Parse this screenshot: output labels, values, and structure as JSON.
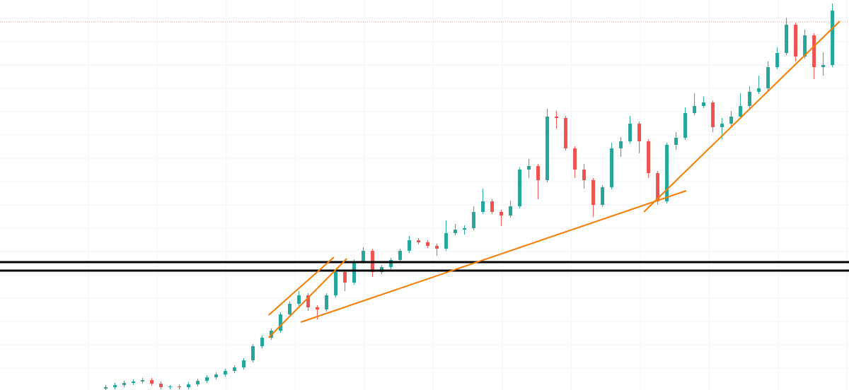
{
  "chart_data": {
    "type": "candlestick",
    "up_color": "#26a69a",
    "down_color": "#ef5350",
    "xlim": [
      -11.5,
      80.8
    ],
    "ylim": [
      0,
      552
    ],
    "grid": true,
    "xticks": [
      -1.9,
      5.6,
      13.1,
      20.6,
      28.1,
      35.6,
      43.1,
      50.6,
      58.1,
      65.6,
      73.1,
      80.6
    ],
    "yticks": [
      31,
      64,
      97,
      130,
      163,
      196,
      229,
      262,
      295,
      328,
      361,
      394,
      427,
      460,
      493,
      526
    ],
    "candles": [
      [
        2,
        7,
        0,
        4
      ],
      [
        4,
        10,
        1,
        7
      ],
      [
        7,
        13,
        4,
        10
      ],
      [
        10,
        15,
        7,
        12
      ],
      [
        12,
        17,
        9,
        14
      ],
      [
        14,
        17,
        6,
        9
      ],
      [
        9,
        12,
        1,
        4
      ],
      [
        4,
        7,
        1,
        5
      ],
      [
        5,
        8,
        1,
        4
      ],
      [
        4,
        11,
        1,
        8
      ],
      [
        8,
        16,
        5,
        13
      ],
      [
        13,
        21,
        10,
        18
      ],
      [
        18,
        25,
        15,
        22
      ],
      [
        22,
        30,
        19,
        27
      ],
      [
        27,
        35,
        24,
        32
      ],
      [
        32,
        45,
        29,
        42
      ],
      [
        42,
        65,
        39,
        62
      ],
      [
        62,
        77,
        59,
        74
      ],
      [
        74,
        87,
        71,
        84
      ],
      [
        84,
        110,
        81,
        107
      ],
      [
        107,
        125,
        104,
        122
      ],
      [
        122,
        140,
        119,
        134
      ],
      [
        134,
        137,
        112,
        117
      ],
      [
        117,
        120,
        100,
        114
      ],
      [
        114,
        137,
        111,
        134
      ],
      [
        134,
        170,
        131,
        167
      ],
      [
        167,
        170,
        140,
        152
      ],
      [
        152,
        185,
        149,
        182
      ],
      [
        182,
        202,
        179,
        197
      ],
      [
        197,
        200,
        160,
        167
      ],
      [
        167,
        177,
        164,
        174
      ],
      [
        174,
        187,
        171,
        184
      ],
      [
        184,
        200,
        181,
        197
      ],
      [
        197,
        218,
        194,
        212
      ],
      [
        212,
        215,
        206,
        209
      ],
      [
        209,
        212,
        201,
        204
      ],
      [
        204,
        207,
        190,
        200
      ],
      [
        200,
        240,
        197,
        222
      ],
      [
        222,
        235,
        219,
        227
      ],
      [
        227,
        233,
        220,
        229
      ],
      [
        229,
        260,
        226,
        252
      ],
      [
        252,
        285,
        249,
        267
      ],
      [
        267,
        270,
        249,
        252
      ],
      [
        252,
        255,
        232,
        247
      ],
      [
        247,
        268,
        244,
        260
      ],
      [
        260,
        315,
        257,
        312
      ],
      [
        312,
        327,
        300,
        317
      ],
      [
        317,
        320,
        270,
        297
      ],
      [
        297,
        398,
        294,
        387
      ],
      [
        387,
        395,
        370,
        385
      ],
      [
        385,
        388,
        339,
        342
      ],
      [
        342,
        345,
        300,
        312
      ],
      [
        312,
        320,
        285,
        297
      ],
      [
        297,
        300,
        245,
        262
      ],
      [
        262,
        290,
        259,
        287
      ],
      [
        287,
        350,
        284,
        342
      ],
      [
        342,
        358,
        330,
        352
      ],
      [
        352,
        388,
        349,
        377
      ],
      [
        377,
        380,
        335,
        352
      ],
      [
        352,
        355,
        300,
        307
      ],
      [
        307,
        310,
        262,
        267
      ],
      [
        267,
        350,
        264,
        347
      ],
      [
        347,
        365,
        340,
        357
      ],
      [
        357,
        400,
        354,
        392
      ],
      [
        392,
        420,
        389,
        402
      ],
      [
        402,
        415,
        399,
        407
      ],
      [
        407,
        410,
        365,
        372
      ],
      [
        372,
        385,
        355,
        377
      ],
      [
        377,
        395,
        374,
        387
      ],
      [
        387,
        420,
        384,
        402
      ],
      [
        402,
        430,
        399,
        422
      ],
      [
        422,
        445,
        419,
        427
      ],
      [
        427,
        465,
        424,
        457
      ],
      [
        457,
        485,
        454,
        477
      ],
      [
        477,
        527,
        474,
        517
      ],
      [
        517,
        520,
        465,
        472
      ],
      [
        472,
        510,
        469,
        502
      ],
      [
        502,
        505,
        440,
        457
      ],
      [
        457,
        478,
        445,
        460
      ],
      [
        460,
        547,
        457,
        537
      ]
    ],
    "trendlines": {
      "color": "#f57c00",
      "lines": [
        [
          [
            17.7,
            106
          ],
          [
            24.8,
            188
          ]
        ],
        [
          [
            17.7,
            74
          ],
          [
            26.2,
            186
          ]
        ],
        [
          [
            21.2,
            96
          ],
          [
            63.1,
            282
          ]
        ],
        [
          [
            58.5,
            252
          ],
          [
            79.8,
            522
          ]
        ]
      ]
    },
    "hlines": {
      "color": "#000000",
      "values": [
        181,
        169
      ]
    },
    "price_line": {
      "color": "#ef5350",
      "value": 521
    }
  }
}
